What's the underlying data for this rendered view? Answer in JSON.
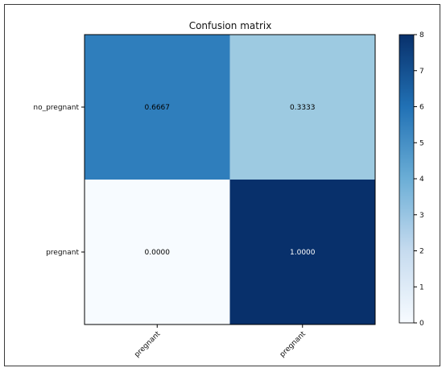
{
  "chart_data": {
    "type": "heatmap",
    "title": "Confusion matrix",
    "row_labels": [
      "no_pregnant",
      "pregnant"
    ],
    "col_labels": [
      "pregnant",
      "pregnant"
    ],
    "values": [
      [
        0.6667,
        0.3333
      ],
      [
        0.0,
        1.0
      ]
    ],
    "cell_text": [
      [
        "0.6667",
        "0.3333"
      ],
      [
        "0.0000",
        "1.0000"
      ]
    ],
    "colormap": "Blues",
    "colorbar": {
      "min": 0,
      "max": 8,
      "ticks": [
        "0",
        "1",
        "2",
        "3",
        "4",
        "5",
        "6",
        "7",
        "8"
      ]
    },
    "cell_colors": [
      [
        "#2f7ebc",
        "#9dcae1"
      ],
      [
        "#f7fbff",
        "#08306b"
      ]
    ],
    "text_colors": [
      [
        "#000000",
        "#000000"
      ],
      [
        "#000000",
        "#ffffff"
      ]
    ],
    "colorbar_colors": [
      "#08306b",
      "#2171b5",
      "#6baed6",
      "#c6dbef",
      "#f7fbff"
    ]
  }
}
